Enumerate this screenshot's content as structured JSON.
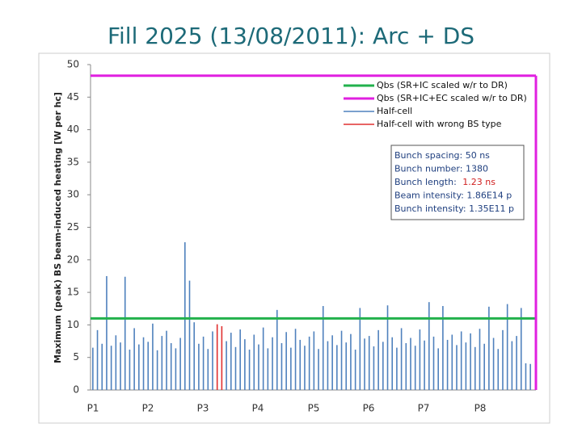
{
  "chart_data": {
    "type": "bar",
    "title": "Fill 2025 (13/08/2011): Arc + DS",
    "y_label": "Maximum (peak) BS beam-induced heating [W per hc]",
    "x_labels": [
      "P1",
      "P2",
      "P3",
      "P4",
      "P5",
      "P6",
      "P7",
      "P8"
    ],
    "ylim": [
      0,
      50
    ],
    "yticks": [
      0,
      5,
      10,
      15,
      20,
      25,
      30,
      35,
      40,
      45,
      50
    ],
    "reference_lines": [
      {
        "name": "Qbs (SR+IC scaled w/r to DR)",
        "color": "#22b14c",
        "value": 11
      },
      {
        "name": "Qbs (SR+IC+EC scaled w/r to DR)",
        "color": "#e020e0",
        "value": 48.3
      }
    ],
    "series": [
      {
        "name": "Half-cell",
        "color": "#4f81bd",
        "values": [
          6.5,
          9.2,
          7.1,
          17.5,
          6.8,
          8.4,
          7.3,
          17.4,
          6.2,
          9.5,
          7.0,
          8.1,
          7.4,
          10.2,
          6.1,
          8.3,
          9.1,
          7.2,
          6.4,
          8.0,
          22.7,
          16.8,
          10.4,
          7.1,
          8.2,
          6.3,
          9.0,
          null,
          null,
          7.5,
          8.8,
          6.6,
          9.3,
          7.8,
          6.2,
          8.5,
          7.0,
          9.6,
          6.4,
          8.1,
          12.3,
          7.2,
          8.9,
          6.5,
          9.4,
          7.7,
          6.8,
          8.2,
          9.0,
          6.3,
          12.9,
          7.5,
          8.4,
          6.9,
          9.1,
          7.3,
          8.6,
          6.2,
          12.6,
          7.9,
          8.3,
          6.7,
          9.2,
          7.4,
          13.0,
          8.1,
          6.5,
          9.5,
          7.2,
          8.0,
          6.8,
          9.3,
          7.6,
          13.5,
          8.2,
          6.4,
          12.9,
          7.7,
          8.5,
          6.9,
          9.0,
          7.3,
          8.7,
          6.6,
          9.4,
          7.1,
          12.8,
          8.0,
          6.3,
          9.2,
          13.2,
          7.5,
          8.3,
          12.6,
          4.1,
          4.0
        ]
      },
      {
        "name": "Half-cell with wrong BS type",
        "color": "#e03030",
        "values": [
          null,
          null,
          null,
          null,
          null,
          null,
          null,
          null,
          null,
          null,
          null,
          null,
          null,
          null,
          null,
          null,
          null,
          null,
          null,
          null,
          null,
          null,
          null,
          null,
          null,
          null,
          null,
          10.1,
          9.8,
          null,
          null,
          null,
          null,
          null,
          null,
          null,
          null,
          null,
          null,
          null,
          null,
          null,
          null,
          null,
          null,
          null,
          null,
          null,
          null,
          null,
          null,
          null,
          null,
          null,
          null,
          null,
          null,
          null,
          null,
          null,
          null,
          null,
          null,
          null,
          null,
          null,
          null,
          null,
          null,
          null,
          null,
          null,
          null,
          null,
          null,
          null,
          null,
          null,
          null,
          null,
          null,
          null,
          null,
          null,
          null,
          null,
          null,
          null,
          null,
          null,
          null,
          null,
          null,
          null,
          null,
          null
        ]
      }
    ],
    "info_box": [
      "Bunch spacing: 50 ns",
      "Bunch number: 1380",
      {
        "text": "Bunch length: ",
        "highlight": "1.23 ns"
      },
      "Beam intensity: 1.86E14 p",
      "Bunch intensity: 1.35E11 p"
    ]
  }
}
